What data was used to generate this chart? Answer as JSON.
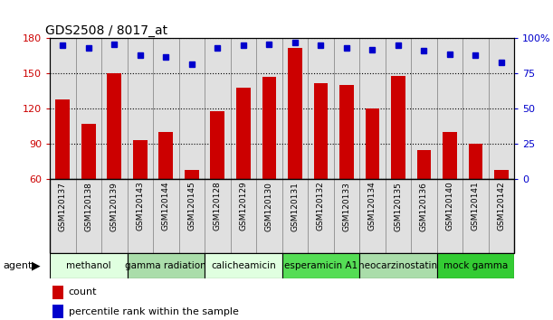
{
  "title": "GDS2508 / 8017_at",
  "samples": [
    "GSM120137",
    "GSM120138",
    "GSM120139",
    "GSM120143",
    "GSM120144",
    "GSM120145",
    "GSM120128",
    "GSM120129",
    "GSM120130",
    "GSM120131",
    "GSM120132",
    "GSM120133",
    "GSM120134",
    "GSM120135",
    "GSM120136",
    "GSM120140",
    "GSM120141",
    "GSM120142"
  ],
  "counts": [
    128,
    107,
    150,
    93,
    100,
    68,
    118,
    138,
    147,
    172,
    142,
    140,
    120,
    148,
    85,
    100,
    90,
    68
  ],
  "percentile": [
    95,
    93,
    96,
    88,
    87,
    82,
    93,
    95,
    96,
    97,
    95,
    93,
    92,
    95,
    91,
    89,
    88,
    83
  ],
  "agents": [
    {
      "label": "methanol",
      "start": 0,
      "end": 3,
      "color": "#e0ffe0"
    },
    {
      "label": "gamma radiation",
      "start": 3,
      "end": 6,
      "color": "#aaddaa"
    },
    {
      "label": "calicheamicin",
      "start": 6,
      "end": 9,
      "color": "#e0ffe0"
    },
    {
      "label": "esperamicin A1",
      "start": 9,
      "end": 12,
      "color": "#55dd55"
    },
    {
      "label": "neocarzinostatin",
      "start": 12,
      "end": 15,
      "color": "#aaddaa"
    },
    {
      "label": "mock gamma",
      "start": 15,
      "end": 18,
      "color": "#33cc33"
    }
  ],
  "ylim_left": [
    60,
    180
  ],
  "ylim_right": [
    0,
    100
  ],
  "yticks_left": [
    60,
    90,
    120,
    150,
    180
  ],
  "yticks_right": [
    0,
    25,
    50,
    75,
    100
  ],
  "ytick_labels_right": [
    "0",
    "25",
    "50",
    "75",
    "100%"
  ],
  "bar_color": "#cc0000",
  "dot_color": "#0000cc",
  "bar_width": 0.55
}
